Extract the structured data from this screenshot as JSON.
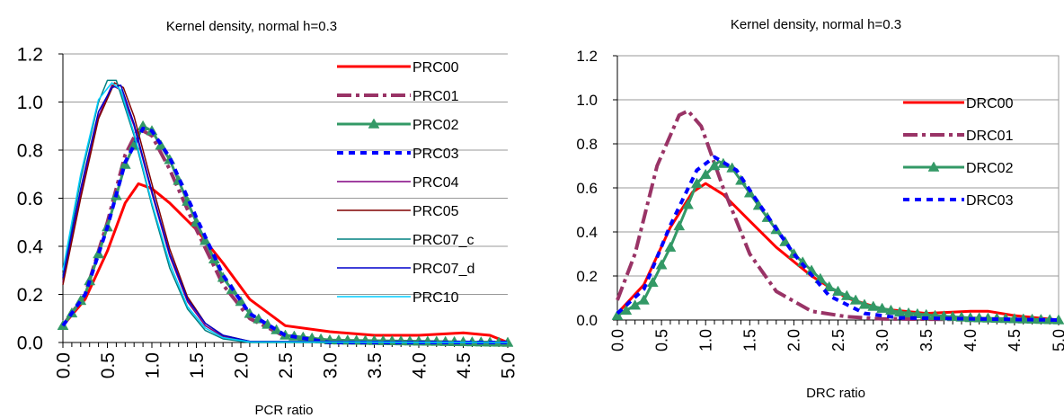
{
  "chart_data": [
    {
      "type": "line",
      "title": "Kernel density, normal h=0.3",
      "xlabel": "PCR ratio",
      "ylabel": "",
      "xlim": [
        0,
        5
      ],
      "ylim": [
        0,
        1.2
      ],
      "xticks": [
        "0.0",
        "0.5",
        "1.0",
        "1.5",
        "2.0",
        "2.5",
        "3.0",
        "3.5",
        "4.0",
        "4.5",
        "5.0"
      ],
      "yticks": [
        "0.0",
        "0.2",
        "0.4",
        "0.6",
        "0.8",
        "1.0",
        "1.2"
      ],
      "grid": "horizontal",
      "legend": "right",
      "series": [
        {
          "name": "PRC00",
          "color": "#ff0000",
          "style": "solid-thick",
          "points": [
            [
              0,
              0.07
            ],
            [
              0.25,
              0.18
            ],
            [
              0.5,
              0.38
            ],
            [
              0.7,
              0.58
            ],
            [
              0.85,
              0.66
            ],
            [
              1.0,
              0.64
            ],
            [
              1.2,
              0.58
            ],
            [
              1.5,
              0.47
            ],
            [
              1.8,
              0.33
            ],
            [
              2.1,
              0.18
            ],
            [
              2.5,
              0.07
            ],
            [
              3.0,
              0.045
            ],
            [
              3.5,
              0.03
            ],
            [
              4.0,
              0.03
            ],
            [
              4.5,
              0.04
            ],
            [
              4.8,
              0.03
            ],
            [
              5.0,
              0.0
            ]
          ]
        },
        {
          "name": "PRC01",
          "color": "#993366",
          "style": "dashdot-thick",
          "points": [
            [
              0,
              0.07
            ],
            [
              0.25,
              0.2
            ],
            [
              0.5,
              0.5
            ],
            [
              0.7,
              0.78
            ],
            [
              0.85,
              0.89
            ],
            [
              1.0,
              0.86
            ],
            [
              1.2,
              0.72
            ],
            [
              1.5,
              0.47
            ],
            [
              1.8,
              0.24
            ],
            [
              2.1,
              0.1
            ],
            [
              2.5,
              0.025
            ],
            [
              3.0,
              0.0
            ],
            [
              5.0,
              0.0
            ]
          ]
        },
        {
          "name": "PRC02",
          "color": "#339966",
          "style": "solid-triangle",
          "points": [
            [
              0,
              0.07
            ],
            [
              0.25,
              0.2
            ],
            [
              0.5,
              0.48
            ],
            [
              0.7,
              0.74
            ],
            [
              0.9,
              0.9
            ],
            [
              1.0,
              0.88
            ],
            [
              1.2,
              0.76
            ],
            [
              1.5,
              0.5
            ],
            [
              1.8,
              0.27
            ],
            [
              2.1,
              0.12
            ],
            [
              2.5,
              0.03
            ],
            [
              3.0,
              0.01
            ],
            [
              5.0,
              0.0
            ]
          ]
        },
        {
          "name": "PRC03",
          "color": "#0000ff",
          "style": "dotted-thick",
          "points": [
            [
              0,
              0.07
            ],
            [
              0.25,
              0.2
            ],
            [
              0.5,
              0.48
            ],
            [
              0.7,
              0.75
            ],
            [
              0.9,
              0.89
            ],
            [
              1.0,
              0.88
            ],
            [
              1.2,
              0.77
            ],
            [
              1.5,
              0.52
            ],
            [
              1.8,
              0.28
            ],
            [
              2.1,
              0.12
            ],
            [
              2.5,
              0.03
            ],
            [
              3.0,
              0.0
            ],
            [
              5.0,
              0.0
            ]
          ]
        },
        {
          "name": "PRC04",
          "color": "#800080",
          "style": "solid-thin",
          "points": [
            [
              0,
              0.25
            ],
            [
              0.2,
              0.62
            ],
            [
              0.4,
              0.94
            ],
            [
              0.55,
              1.07
            ],
            [
              0.65,
              1.05
            ],
            [
              0.8,
              0.9
            ],
            [
              1.0,
              0.62
            ],
            [
              1.2,
              0.36
            ],
            [
              1.4,
              0.17
            ],
            [
              1.6,
              0.07
            ],
            [
              1.8,
              0.025
            ],
            [
              2.1,
              0.005
            ],
            [
              5.0,
              0.0
            ]
          ]
        },
        {
          "name": "PRC05",
          "color": "#800000",
          "style": "solid-thin",
          "points": [
            [
              0,
              0.24
            ],
            [
              0.2,
              0.6
            ],
            [
              0.4,
              0.93
            ],
            [
              0.58,
              1.08
            ],
            [
              0.68,
              1.06
            ],
            [
              0.8,
              0.94
            ],
            [
              1.0,
              0.66
            ],
            [
              1.2,
              0.39
            ],
            [
              1.4,
              0.19
            ],
            [
              1.6,
              0.08
            ],
            [
              1.8,
              0.03
            ],
            [
              2.1,
              0.005
            ],
            [
              5.0,
              0.0
            ]
          ]
        },
        {
          "name": "PRC07_c",
          "color": "#008080",
          "style": "solid-thin",
          "points": [
            [
              0,
              0.28
            ],
            [
              0.2,
              0.68
            ],
            [
              0.4,
              1.0
            ],
            [
              0.5,
              1.09
            ],
            [
              0.6,
              1.09
            ],
            [
              0.8,
              0.86
            ],
            [
              1.0,
              0.57
            ],
            [
              1.2,
              0.31
            ],
            [
              1.4,
              0.14
            ],
            [
              1.6,
              0.05
            ],
            [
              1.8,
              0.015
            ],
            [
              2.1,
              0.0
            ],
            [
              5.0,
              0.0
            ]
          ]
        },
        {
          "name": "PRC07_d",
          "color": "#0000cc",
          "style": "solid-thin",
          "points": [
            [
              0,
              0.27
            ],
            [
              0.2,
              0.64
            ],
            [
              0.4,
              0.96
            ],
            [
              0.55,
              1.06
            ],
            [
              0.65,
              1.07
            ],
            [
              0.8,
              0.91
            ],
            [
              1.0,
              0.63
            ],
            [
              1.2,
              0.37
            ],
            [
              1.4,
              0.18
            ],
            [
              1.6,
              0.08
            ],
            [
              1.8,
              0.03
            ],
            [
              2.1,
              0.005
            ],
            [
              5.0,
              0.0
            ]
          ]
        },
        {
          "name": "PRC10",
          "color": "#00ccff",
          "style": "solid-thin",
          "points": [
            [
              0,
              0.3
            ],
            [
              0.2,
              0.7
            ],
            [
              0.4,
              1.01
            ],
            [
              0.55,
              1.08
            ],
            [
              0.65,
              1.05
            ],
            [
              0.8,
              0.87
            ],
            [
              1.0,
              0.58
            ],
            [
              1.2,
              0.33
            ],
            [
              1.4,
              0.15
            ],
            [
              1.6,
              0.06
            ],
            [
              1.8,
              0.02
            ],
            [
              2.1,
              0.003
            ],
            [
              5.0,
              0.0
            ]
          ]
        }
      ]
    },
    {
      "type": "line",
      "title": "Kernel density, normal h=0.3",
      "xlabel": "DRC ratio",
      "ylabel": "",
      "xlim": [
        0,
        5
      ],
      "ylim": [
        0,
        1.2
      ],
      "xticks": [
        "0.0",
        "0.5",
        "1.0",
        "1.5",
        "2.0",
        "2.5",
        "3.0",
        "3.5",
        "4.0",
        "4.5",
        "5.0"
      ],
      "yticks": [
        "0.0",
        "0.2",
        "0.4",
        "0.6",
        "0.8",
        "1.0",
        "1.2"
      ],
      "grid": "horizontal",
      "legend": "right",
      "series": [
        {
          "name": "DRC00",
          "color": "#ff0000",
          "style": "solid-thick",
          "points": [
            [
              0,
              0.03
            ],
            [
              0.3,
              0.16
            ],
            [
              0.6,
              0.42
            ],
            [
              0.85,
              0.58
            ],
            [
              1.0,
              0.62
            ],
            [
              1.2,
              0.57
            ],
            [
              1.5,
              0.45
            ],
            [
              1.8,
              0.33
            ],
            [
              2.2,
              0.2
            ],
            [
              2.6,
              0.1
            ],
            [
              3.0,
              0.05
            ],
            [
              3.5,
              0.03
            ],
            [
              4.0,
              0.04
            ],
            [
              4.2,
              0.04
            ],
            [
              4.5,
              0.02
            ],
            [
              5.0,
              0.0
            ]
          ]
        },
        {
          "name": "DRC01",
          "color": "#993366",
          "style": "dashdot-thick",
          "points": [
            [
              0,
              0.09
            ],
            [
              0.2,
              0.3
            ],
            [
              0.45,
              0.7
            ],
            [
              0.7,
              0.93
            ],
            [
              0.8,
              0.95
            ],
            [
              0.95,
              0.88
            ],
            [
              1.2,
              0.6
            ],
            [
              1.5,
              0.3
            ],
            [
              1.8,
              0.13
            ],
            [
              2.2,
              0.04
            ],
            [
              2.6,
              0.015
            ],
            [
              3.0,
              0.005
            ],
            [
              5.0,
              0.0
            ]
          ]
        },
        {
          "name": "DRC02",
          "color": "#339966",
          "style": "solid-triangle",
          "points": [
            [
              0,
              0.02
            ],
            [
              0.3,
              0.09
            ],
            [
              0.6,
              0.33
            ],
            [
              0.9,
              0.62
            ],
            [
              1.15,
              0.72
            ],
            [
              1.3,
              0.69
            ],
            [
              1.6,
              0.52
            ],
            [
              2.0,
              0.3
            ],
            [
              2.4,
              0.15
            ],
            [
              2.8,
              0.07
            ],
            [
              3.2,
              0.035
            ],
            [
              3.6,
              0.02
            ],
            [
              4.0,
              0.01
            ],
            [
              4.5,
              0.005
            ],
            [
              5.0,
              0.0
            ]
          ]
        },
        {
          "name": "DRC03",
          "color": "#0000ff",
          "style": "dotted-thick",
          "points": [
            [
              0,
              0.03
            ],
            [
              0.3,
              0.14
            ],
            [
              0.6,
              0.43
            ],
            [
              0.9,
              0.68
            ],
            [
              1.1,
              0.74
            ],
            [
              1.35,
              0.68
            ],
            [
              1.6,
              0.53
            ],
            [
              2.0,
              0.3
            ],
            [
              2.4,
              0.11
            ],
            [
              2.8,
              0.03
            ],
            [
              3.2,
              0.01
            ],
            [
              5.0,
              0.0
            ]
          ]
        }
      ]
    }
  ]
}
